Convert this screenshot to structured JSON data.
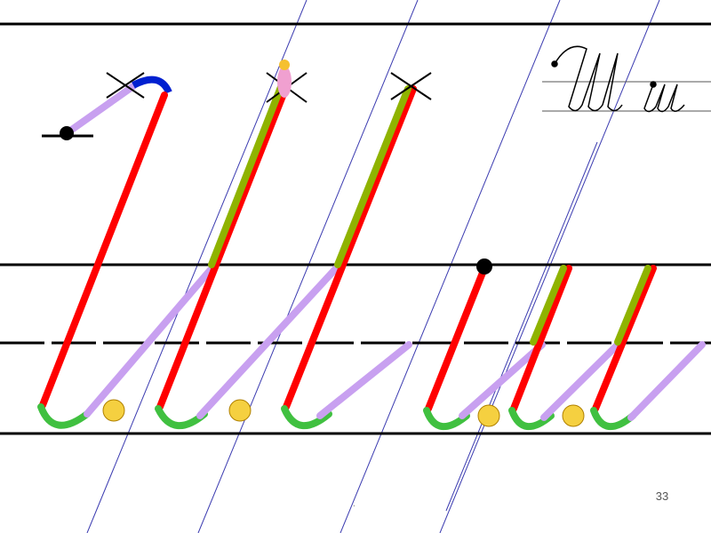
{
  "page_number": "33"
}
